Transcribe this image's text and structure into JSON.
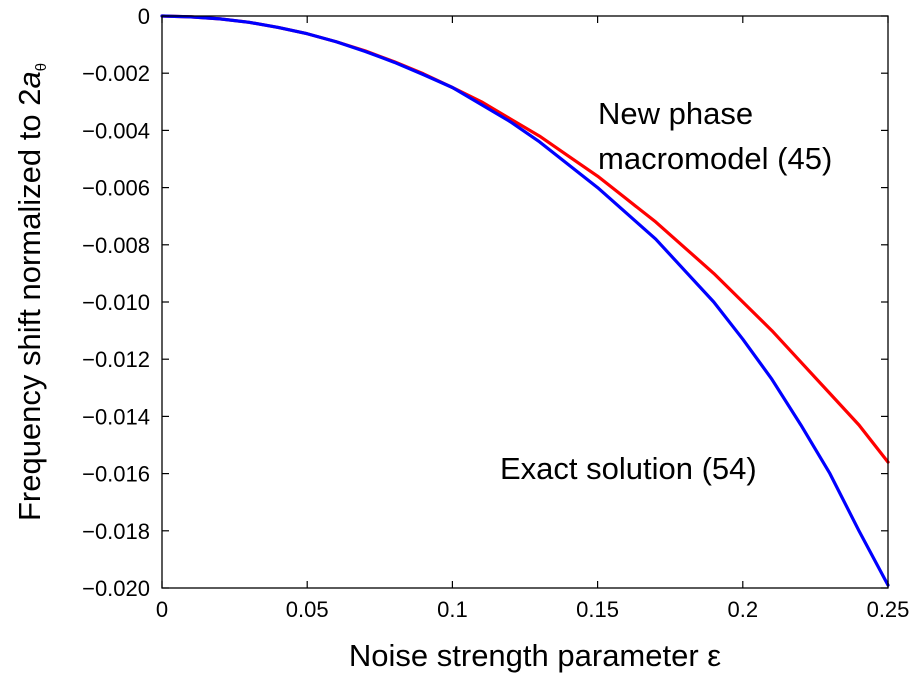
{
  "chart_data": {
    "type": "line",
    "xlabel": "Noise strength parameter ε",
    "ylabel_main": "Frequency shift normalized to 2",
    "ylabel_var": "a",
    "ylabel_sub": "θ",
    "xlim": [
      0,
      0.25
    ],
    "ylim": [
      -0.02,
      0
    ],
    "grid": false,
    "x_ticks": [
      0,
      0.05,
      0.1,
      0.15,
      0.2,
      0.25
    ],
    "x_tick_labels": [
      "0",
      "0.05",
      "0.1",
      "0.15",
      "0.2",
      "0.25"
    ],
    "y_ticks": [
      0,
      -0.002,
      -0.004,
      -0.006,
      -0.008,
      -0.01,
      -0.012,
      -0.014,
      -0.016,
      -0.018,
      -0.02
    ],
    "y_tick_labels": [
      "0",
      "−0.002",
      "−0.004",
      "−0.006",
      "−0.008",
      "−0.010",
      "−0.012",
      "−0.014",
      "−0.016",
      "−0.018",
      "−0.020"
    ],
    "annotations": [
      {
        "lines": [
          "New phase",
          "macromodel (45)"
        ],
        "series": "macromodel"
      },
      {
        "lines": [
          "Exact solution (54)"
        ],
        "series": "exact"
      }
    ],
    "series": [
      {
        "id": "macromodel",
        "color": "#ff0000",
        "x": [
          0,
          0.01,
          0.02,
          0.03,
          0.04,
          0.05,
          0.06,
          0.07,
          0.08,
          0.09,
          0.1,
          0.11,
          0.12,
          0.13,
          0.14,
          0.15,
          0.16,
          0.17,
          0.18,
          0.19,
          0.2,
          0.21,
          0.22,
          0.23,
          0.24,
          0.25
        ],
        "y": [
          0,
          -3e-05,
          -0.0001,
          -0.00022,
          -0.0004,
          -0.00062,
          -0.0009,
          -0.00122,
          -0.0016,
          -0.00202,
          -0.0025,
          -0.003,
          -0.0036,
          -0.0042,
          -0.0049,
          -0.0056,
          -0.0064,
          -0.0072,
          -0.0081,
          -0.009,
          -0.01,
          -0.011,
          -0.0121,
          -0.0132,
          -0.0143,
          -0.0156
        ]
      },
      {
        "id": "exact",
        "color": "#0000ff",
        "x": [
          0,
          0.01,
          0.02,
          0.03,
          0.04,
          0.05,
          0.06,
          0.07,
          0.08,
          0.09,
          0.1,
          0.11,
          0.12,
          0.13,
          0.14,
          0.15,
          0.16,
          0.17,
          0.18,
          0.19,
          0.2,
          0.21,
          0.22,
          0.23,
          0.24,
          0.25
        ],
        "y": [
          0,
          -3e-05,
          -0.0001,
          -0.00022,
          -0.0004,
          -0.00062,
          -0.0009,
          -0.00124,
          -0.00162,
          -0.00205,
          -0.0025,
          -0.0031,
          -0.0037,
          -0.0044,
          -0.0052,
          -0.006,
          -0.0069,
          -0.0078,
          -0.0089,
          -0.01,
          -0.0113,
          -0.0127,
          -0.0143,
          -0.016,
          -0.018,
          -0.0199
        ]
      }
    ]
  }
}
